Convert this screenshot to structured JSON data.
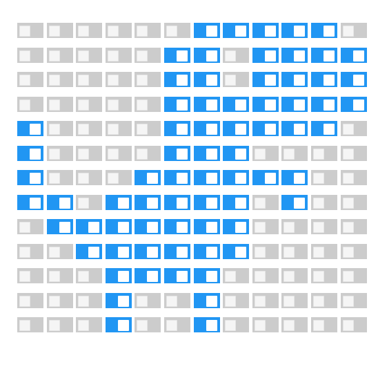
{
  "toggle_grid": {
    "rows": 13,
    "cols": 12,
    "states": [
      [
        0,
        0,
        0,
        0,
        0,
        0,
        1,
        1,
        1,
        1,
        1,
        0
      ],
      [
        0,
        0,
        0,
        0,
        0,
        1,
        1,
        0,
        1,
        1,
        1,
        1
      ],
      [
        0,
        0,
        0,
        0,
        0,
        1,
        1,
        0,
        1,
        1,
        1,
        1
      ],
      [
        0,
        0,
        0,
        0,
        0,
        1,
        1,
        1,
        1,
        1,
        1,
        1
      ],
      [
        1,
        0,
        0,
        0,
        0,
        1,
        1,
        1,
        1,
        1,
        1,
        0
      ],
      [
        1,
        0,
        0,
        0,
        0,
        1,
        1,
        1,
        0,
        0,
        0,
        0
      ],
      [
        1,
        0,
        0,
        0,
        1,
        1,
        1,
        1,
        1,
        1,
        0,
        0
      ],
      [
        1,
        1,
        0,
        1,
        1,
        1,
        1,
        1,
        0,
        1,
        0,
        0
      ],
      [
        0,
        1,
        1,
        1,
        1,
        1,
        1,
        1,
        0,
        0,
        0,
        0
      ],
      [
        0,
        0,
        1,
        1,
        1,
        1,
        1,
        1,
        0,
        0,
        0,
        0
      ],
      [
        0,
        0,
        0,
        1,
        1,
        1,
        1,
        0,
        0,
        0,
        0,
        0
      ],
      [
        0,
        0,
        0,
        1,
        0,
        0,
        1,
        0,
        0,
        0,
        0,
        0
      ],
      [
        0,
        0,
        0,
        1,
        0,
        0,
        1,
        0,
        0,
        0,
        0,
        0
      ]
    ]
  },
  "colors": {
    "on": "#2196f3",
    "off": "#cccccc"
  }
}
